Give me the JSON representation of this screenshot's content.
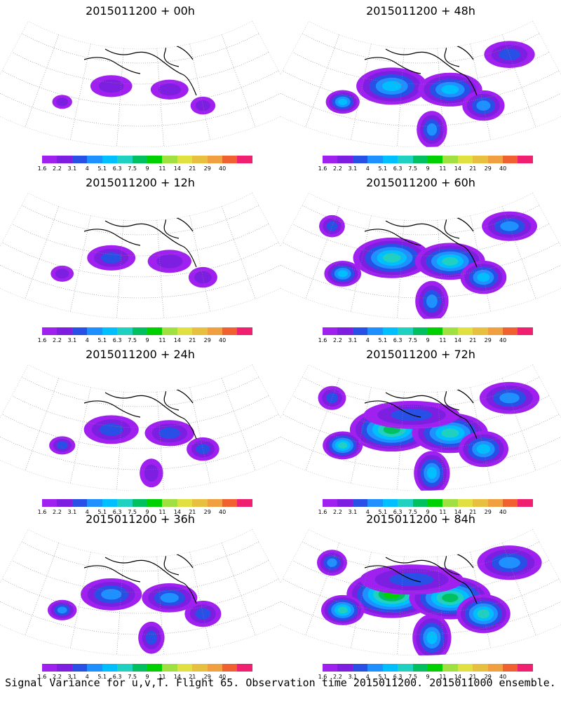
{
  "caption": "Signal Variance for u,v,T. Flight 65. Observation time 2015011200. 2015011000 ensemble.",
  "colorbar": {
    "labels": [
      "1.6",
      "2.2",
      "3.1",
      "4",
      "5.1",
      "6.3",
      "7.5",
      "9",
      "11",
      "14",
      "21",
      "29",
      "40"
    ],
    "colors": [
      "#a020f0",
      "#7d1fe0",
      "#2950e6",
      "#1e90ff",
      "#00bfff",
      "#20d0c0",
      "#00c060",
      "#00d000",
      "#a0e040",
      "#e0e040",
      "#e8c040",
      "#f0a040",
      "#f06030",
      "#f02070"
    ]
  },
  "panels": [
    {
      "title": "2015011200 + 00h",
      "intensity": 0.1
    },
    {
      "title": "2015011200 + 48h",
      "intensity": 0.55
    },
    {
      "title": "2015011200 + 12h",
      "intensity": 0.2
    },
    {
      "title": "2015011200 + 60h",
      "intensity": 0.65
    },
    {
      "title": "2015011200 + 24h",
      "intensity": 0.3
    },
    {
      "title": "2015011200 + 72h",
      "intensity": 0.75
    },
    {
      "title": "2015011200 + 36h",
      "intensity": 0.4
    },
    {
      "title": "2015011200 + 84h",
      "intensity": 0.85
    }
  ]
}
